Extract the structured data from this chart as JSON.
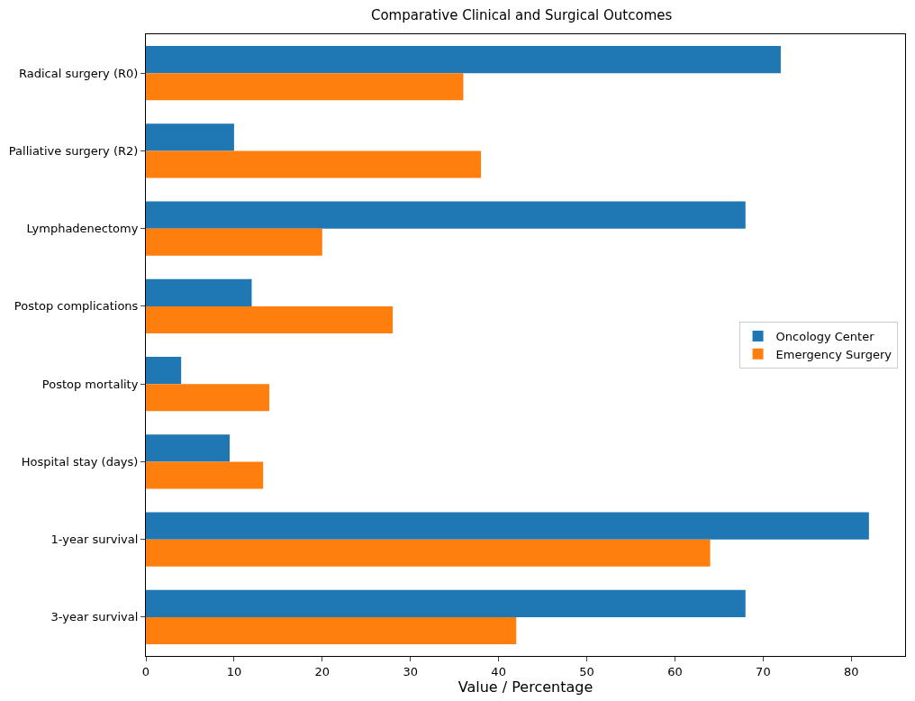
{
  "chart_data": {
    "type": "bar",
    "orientation": "horizontal",
    "title": "Comparative Clinical and Surgical Outcomes",
    "xlabel": "Value / Percentage",
    "categories": [
      "Radical surgery (R0)",
      "Palliative surgery (R2)",
      "Lymphadenectomy",
      "Postop complications",
      "Postop mortality",
      "Hospital stay (days)",
      "1-year survival",
      "3-year survival"
    ],
    "series": [
      {
        "name": "Oncology Center",
        "color": "#1f77b4",
        "values": [
          72,
          10,
          68,
          12,
          4,
          9.5,
          82,
          68
        ]
      },
      {
        "name": "Emergency Surgery",
        "color": "#ff7f0e",
        "values": [
          36,
          38,
          20,
          28,
          14,
          13.3,
          64,
          42
        ]
      }
    ],
    "xlim": [
      0,
      86.1
    ],
    "xticks": [
      0,
      10,
      20,
      30,
      40,
      50,
      60,
      70,
      80
    ],
    "legend": "right"
  }
}
